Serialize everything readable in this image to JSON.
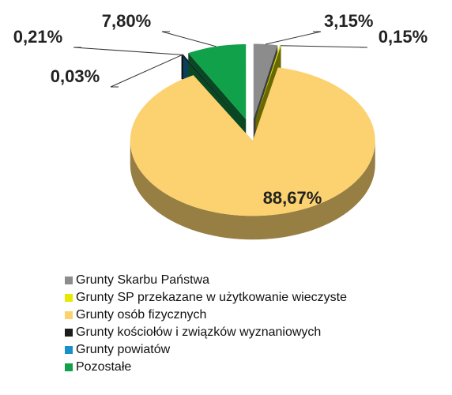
{
  "chart_data": {
    "type": "pie",
    "categories": [
      "Grunty Skarbu Państwa",
      "Grunty SP przekazane w użytkowanie wieczyste",
      "Grunty osób fizycznych",
      "Grunty kościołów i związków wyznaniowych",
      "Grunty powiatów",
      "Pozostałe"
    ],
    "values": [
      3.15,
      0.15,
      88.67,
      0.21,
      0.03,
      7.8
    ],
    "value_labels": [
      "3,15%",
      "0,15%",
      "88,67%",
      "0,21%",
      "0,03%",
      "7,80%"
    ],
    "colors": [
      "#8c8c8c",
      "#e8e800",
      "#fbd26f",
      "#1c1c1c",
      "#1a8fc9",
      "#12a14b"
    ],
    "legend": "bottom"
  }
}
